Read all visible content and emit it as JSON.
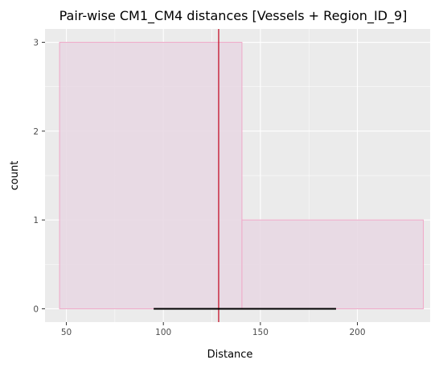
{
  "chart_data": {
    "type": "histogram",
    "title": "Pair-wise CM1_CM4 distances [Vessels + Region_ID_9]",
    "xlabel": "Distance",
    "ylabel": "count",
    "xlim": [
      39,
      237.5
    ],
    "ylim": [
      -0.15,
      3.15
    ],
    "x_ticks": [
      50,
      100,
      150,
      200
    ],
    "y_ticks": [
      0,
      1,
      2,
      3
    ],
    "bins": [
      {
        "x0": 46.5,
        "x1": 140.5,
        "count": 3
      },
      {
        "x0": 140.5,
        "x1": 234,
        "count": 1
      }
    ],
    "vline": {
      "x": 128.5,
      "color": "#c0001a"
    },
    "hsegment": {
      "x0": 95,
      "x1": 189,
      "y": 0,
      "color": "#000000"
    },
    "grid": true,
    "colors": {
      "panel_bg": "#ebebeb",
      "grid_major": "#ffffff",
      "bar_fill": "#e8d8e3",
      "bar_stroke": "#f0a8c8"
    }
  }
}
